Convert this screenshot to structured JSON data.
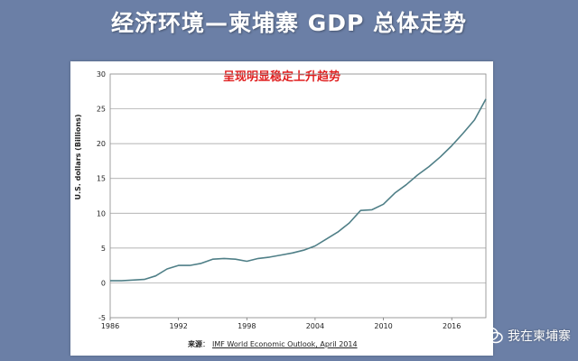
{
  "header": {
    "title": "经济环境—柬埔寨 GDP 总体走势",
    "subtitle": "呈现明显稳定上升趋势"
  },
  "source": {
    "label": "来源",
    "text": "IMF World Economic Outlook, April 2014"
  },
  "watermark": {
    "text": "我在柬埔寨",
    "icon": "wechat-icon"
  },
  "colors": {
    "background": "#6b7fa6",
    "title": "#ffffff",
    "subtitle": "#e02020",
    "line": "#4f7f87"
  },
  "chart_data": {
    "type": "line",
    "title": "",
    "xlabel": "",
    "ylabel": "U.S. dollars (Billions)",
    "xlim": [
      1986,
      2019
    ],
    "ylim": [
      -5,
      30
    ],
    "x_ticks": [
      1986,
      1992,
      1998,
      2004,
      2010,
      2016
    ],
    "y_ticks": [
      -5,
      0,
      5,
      10,
      15,
      20,
      25,
      30
    ],
    "grid": "horizontal",
    "series": [
      {
        "x": [
          1986,
          1987,
          1988,
          1989,
          1990,
          1991,
          1992,
          1993,
          1994,
          1995,
          1996,
          1997,
          1998,
          1999,
          2000,
          2001,
          2002,
          2003,
          2004,
          2005,
          2006,
          2007,
          2008,
          2009,
          2010,
          2011,
          2012,
          2013,
          2014,
          2015,
          2016,
          2017,
          2018,
          2019
        ],
        "values": [
          0.3,
          0.3,
          0.4,
          0.5,
          1.0,
          2.0,
          2.5,
          2.5,
          2.8,
          3.4,
          3.5,
          3.4,
          3.1,
          3.5,
          3.7,
          4.0,
          4.3,
          4.7,
          5.3,
          6.3,
          7.3,
          8.6,
          10.4,
          10.5,
          11.3,
          12.9,
          14.1,
          15.5,
          16.7,
          18.1,
          19.7,
          21.5,
          23.4,
          26.4
        ]
      }
    ]
  }
}
